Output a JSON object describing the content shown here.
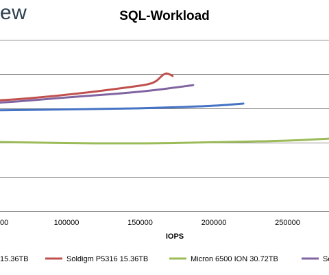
{
  "brand": {
    "text_visible": "ew"
  },
  "chart_data": {
    "type": "line",
    "title": "SQL-Workload",
    "xlabel": "IOPS",
    "ylabel": "",
    "x_ticks": [
      "0",
      "100000",
      "150000",
      "200000",
      "250000"
    ],
    "x_tick_values": [
      0,
      100000,
      150000,
      200000,
      250000
    ],
    "x_tick_labels_visible": [
      "00",
      "100000",
      "150000",
      "200000",
      "250000"
    ],
    "xlim": [
      0,
      280000
    ],
    "grid": true,
    "gridline_count": 5,
    "legend_position": "bottom",
    "series": [
      {
        "name": "15.36TB",
        "legend_label_visible": "15.36TB",
        "color": "#4472c4",
        "points": [
          [
            0,
            4.0
          ],
          [
            50000,
            4.1
          ],
          [
            100000,
            4.25
          ],
          [
            150000,
            4.35
          ],
          [
            200000,
            4.7
          ],
          [
            220000,
            5.0
          ]
        ]
      },
      {
        "name": "Soldigm P5316 15.36TB",
        "color": "#c0504d",
        "points": [
          [
            0,
            5.0
          ],
          [
            50000,
            5.3
          ],
          [
            100000,
            6.1
          ],
          [
            150000,
            7.3
          ],
          [
            160000,
            7.7
          ],
          [
            165000,
            8.7
          ],
          [
            168000,
            9.0
          ],
          [
            172000,
            8.6
          ]
        ]
      },
      {
        "name": "Micron 6500 ION 30.72TB",
        "color": "#9bbb59",
        "points": [
          [
            0,
            1.1
          ],
          [
            20000,
            0.15
          ],
          [
            50000,
            0.0
          ],
          [
            100000,
            -0.15
          ],
          [
            150000,
            -0.2
          ],
          [
            200000,
            -0.05
          ],
          [
            250000,
            0.15
          ],
          [
            280000,
            0.45
          ]
        ]
      },
      {
        "name": "So",
        "legend_label_visible": "So",
        "color": "#8064a2",
        "points": [
          [
            0,
            4.7
          ],
          [
            50000,
            5.0
          ],
          [
            100000,
            5.8
          ],
          [
            150000,
            6.5
          ],
          [
            186000,
            7.4
          ]
        ]
      }
    ]
  }
}
